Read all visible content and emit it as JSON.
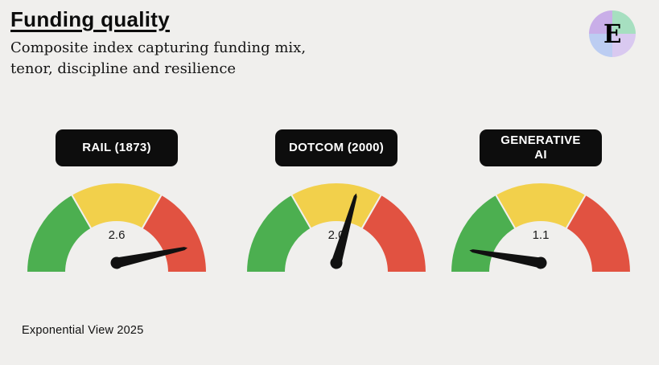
{
  "page": {
    "background": "#f0efed"
  },
  "header": {
    "title": "Funding quality",
    "subtitle": "Composite index capturing funding mix,\ntenor, discipline and resilience"
  },
  "logo": {
    "letter": "E",
    "quadrant_colors": [
      "#a6dfc0",
      "#d9c9f0",
      "#bccdf2",
      "#c9aee8"
    ]
  },
  "footer": {
    "credit": "Exponential View 2025"
  },
  "chart_data": {
    "type": "gauge",
    "title": "Funding quality",
    "gauges": [
      {
        "label": "RAIL (1873)",
        "value": "2.6",
        "needle_angle_deg": 12
      },
      {
        "label": "DOTCOM (2000)",
        "value": "2.0",
        "needle_angle_deg": 74
      },
      {
        "label": "GENERATIVE\nAI",
        "value": "1.1",
        "needle_angle_deg": 170
      }
    ],
    "segments": [
      {
        "name": "green",
        "from_deg": 180,
        "to_deg": 120,
        "color": "#4caf50"
      },
      {
        "name": "yellow",
        "from_deg": 120,
        "to_deg": 60,
        "color": "#f2d04b"
      },
      {
        "name": "red",
        "from_deg": 60,
        "to_deg": 0,
        "color": "#e15241"
      }
    ],
    "needle_color": "#111111",
    "value_color": "#1a1a1a"
  }
}
